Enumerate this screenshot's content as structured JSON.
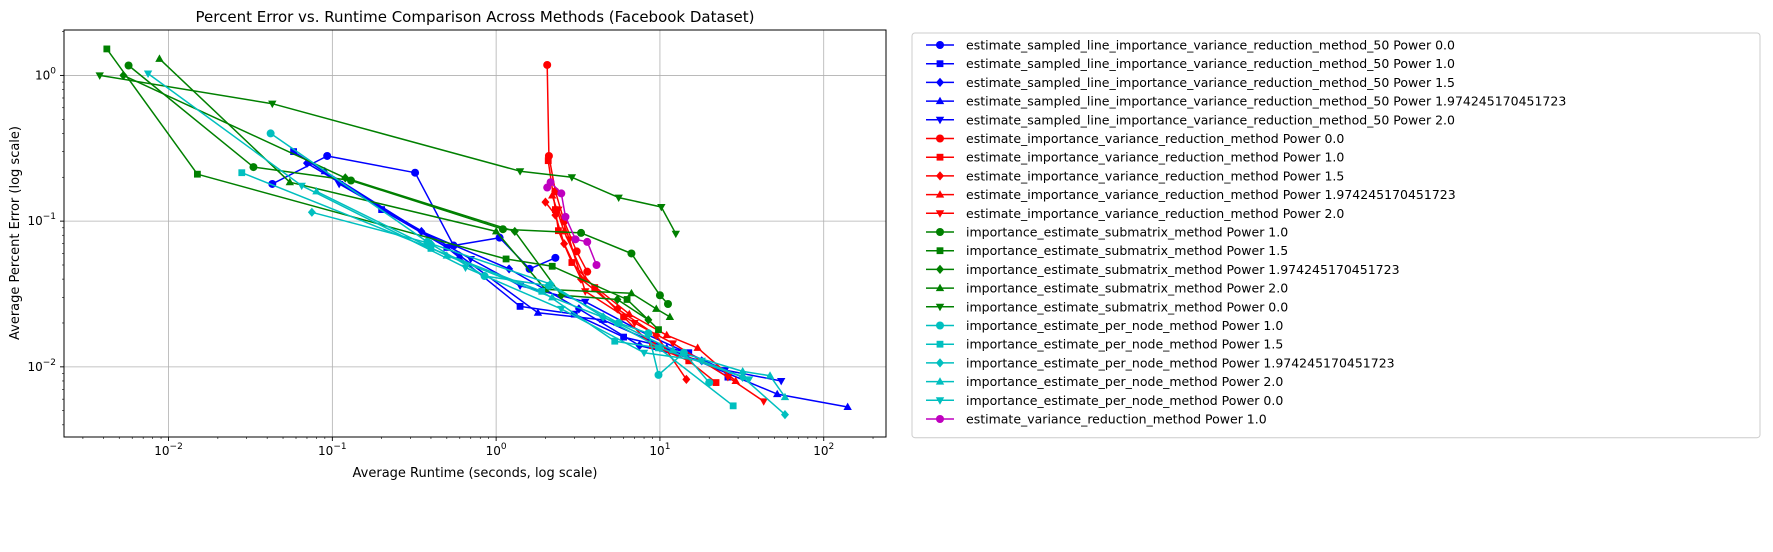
{
  "chart_data": {
    "type": "line",
    "title": "Percent Error vs. Runtime Comparison Across Methods (Facebook Dataset)",
    "xlabel": "Average Runtime (seconds, log scale)",
    "ylabel": "Average Percent Error (log scale)",
    "xscale": "log",
    "yscale": "log",
    "xlim": [
      0.0023,
      240
    ],
    "ylim": [
      0.0033,
      2.05
    ],
    "grid": true,
    "legend_position": "outside-right",
    "x_ticks": [
      {
        "value": 0.01,
        "base": "10",
        "exp": "−2"
      },
      {
        "value": 0.1,
        "base": "10",
        "exp": "−1"
      },
      {
        "value": 1,
        "base": "10",
        "exp": "0"
      },
      {
        "value": 10,
        "base": "10",
        "exp": "1"
      },
      {
        "value": 100,
        "base": "10",
        "exp": "2"
      }
    ],
    "y_ticks": [
      {
        "value": 0.01,
        "base": "10",
        "exp": "−2"
      },
      {
        "value": 0.1,
        "base": "10",
        "exp": "−1"
      },
      {
        "value": 1,
        "base": "10",
        "exp": "0"
      }
    ],
    "series": [
      {
        "name": "estimate_sampled_line_importance_variance_reduction_method_50 Power 0.0",
        "color": "#0000ff",
        "marker": "circle",
        "points": [
          [
            0.043,
            0.18
          ],
          [
            0.093,
            0.28
          ],
          [
            0.32,
            0.215
          ],
          [
            0.55,
            0.068
          ],
          [
            1.05,
            0.077
          ],
          [
            1.6,
            0.047
          ],
          [
            2.3,
            0.056
          ]
        ]
      },
      {
        "name": "estimate_sampled_line_importance_variance_reduction_method_50 Power 1.0",
        "color": "#0000ff",
        "marker": "square",
        "points": [
          [
            0.058,
            0.3
          ],
          [
            0.2,
            0.12
          ],
          [
            0.5,
            0.066
          ],
          [
            1.4,
            0.026
          ],
          [
            3.0,
            0.023
          ],
          [
            6.0,
            0.016
          ],
          [
            15,
            0.0125
          ],
          [
            26,
            0.0085
          ]
        ]
      },
      {
        "name": "estimate_sampled_line_importance_variance_reduction_method_50 Power 1.5",
        "color": "#0000ff",
        "marker": "diamond",
        "points": [
          [
            0.07,
            0.25
          ],
          [
            0.35,
            0.085
          ],
          [
            1.2,
            0.047
          ],
          [
            3.2,
            0.025
          ],
          [
            7.5,
            0.014
          ],
          [
            18,
            0.011
          ],
          [
            32,
            0.0085
          ]
        ]
      },
      {
        "name": "estimate_sampled_line_importance_variance_reduction_method_50 Power 1.974245170451723",
        "color": "#0000ff",
        "marker": "triangle-up",
        "points": [
          [
            0.09,
            0.22
          ],
          [
            0.6,
            0.058
          ],
          [
            1.8,
            0.0235
          ],
          [
            4.5,
            0.021
          ],
          [
            11,
            0.0135
          ],
          [
            52,
            0.0065
          ],
          [
            140,
            0.0053
          ]
        ]
      },
      {
        "name": "estimate_sampled_line_importance_variance_reduction_method_50 Power 2.0",
        "color": "#0000ff",
        "marker": "triangle-down",
        "points": [
          [
            0.11,
            0.18
          ],
          [
            0.7,
            0.055
          ],
          [
            1.4,
            0.036
          ],
          [
            3.5,
            0.028
          ],
          [
            8.5,
            0.0165
          ],
          [
            25,
            0.0095
          ],
          [
            55,
            0.008
          ]
        ]
      },
      {
        "name": "estimate_importance_variance_reduction_method Power 0.0",
        "color": "#ff0000",
        "marker": "circle",
        "points": [
          [
            2.05,
            1.18
          ],
          [
            2.1,
            0.28
          ],
          [
            2.3,
            0.16
          ],
          [
            2.6,
            0.1
          ],
          [
            3.1,
            0.062
          ],
          [
            3.6,
            0.045
          ]
        ]
      },
      {
        "name": "estimate_importance_variance_reduction_method Power 1.0",
        "color": "#ff0000",
        "marker": "square",
        "points": [
          [
            2.08,
            0.26
          ],
          [
            2.3,
            0.12
          ],
          [
            2.4,
            0.086
          ],
          [
            2.9,
            0.052
          ],
          [
            4.0,
            0.035
          ],
          [
            6.0,
            0.022
          ],
          [
            9.0,
            0.014
          ],
          [
            15,
            0.011
          ],
          [
            22,
            0.0078
          ]
        ]
      },
      {
        "name": "estimate_importance_variance_reduction_method Power 1.5",
        "color": "#ff0000",
        "marker": "diamond",
        "points": [
          [
            2.0,
            0.135
          ],
          [
            2.3,
            0.11
          ],
          [
            2.6,
            0.07
          ],
          [
            3.3,
            0.04
          ],
          [
            5.5,
            0.025
          ],
          [
            9.5,
            0.0165
          ],
          [
            14.5,
            0.0082
          ]
        ]
      },
      {
        "name": "estimate_importance_variance_reduction_method Power 1.974245170451723",
        "color": "#ff0000",
        "marker": "triangle-up",
        "points": [
          [
            2.2,
            0.15
          ],
          [
            2.6,
            0.085
          ],
          [
            3.5,
            0.04
          ],
          [
            6.5,
            0.023
          ],
          [
            11,
            0.0165
          ],
          [
            17,
            0.0135
          ],
          [
            29,
            0.008
          ]
        ]
      },
      {
        "name": "estimate_importance_variance_reduction_method Power 2.0",
        "color": "#ff0000",
        "marker": "triangle-down",
        "points": [
          [
            2.4,
            0.12
          ],
          [
            2.8,
            0.075
          ],
          [
            3.5,
            0.033
          ],
          [
            7,
            0.02
          ],
          [
            12,
            0.0145
          ],
          [
            26,
            0.0085
          ],
          [
            43,
            0.0058
          ]
        ]
      },
      {
        "name": "importance_estimate_submatrix_method Power 1.0",
        "color": "#008000",
        "marker": "circle",
        "points": [
          [
            0.0057,
            1.17
          ],
          [
            0.033,
            0.235
          ],
          [
            0.13,
            0.19
          ],
          [
            1.1,
            0.088
          ],
          [
            3.3,
            0.083
          ],
          [
            6.7,
            0.06
          ],
          [
            10,
            0.031
          ],
          [
            11.2,
            0.027
          ]
        ]
      },
      {
        "name": "importance_estimate_submatrix_method Power 1.5",
        "color": "#008000",
        "marker": "square",
        "points": [
          [
            0.0042,
            1.52
          ],
          [
            0.015,
            0.21
          ],
          [
            1.15,
            0.055
          ],
          [
            2.2,
            0.049
          ],
          [
            6.3,
            0.029
          ],
          [
            9.8,
            0.018
          ]
        ]
      },
      {
        "name": "importance_estimate_submatrix_method Power 1.974245170451723",
        "color": "#008000",
        "marker": "diamond",
        "points": [
          [
            0.0053,
            1.0
          ],
          [
            0.12,
            0.198
          ],
          [
            1.3,
            0.085
          ],
          [
            2.5,
            0.031
          ],
          [
            5.5,
            0.029
          ],
          [
            8.5,
            0.021
          ]
        ]
      },
      {
        "name": "importance_estimate_submatrix_method Power 2.0",
        "color": "#008000",
        "marker": "triangle-up",
        "points": [
          [
            0.0088,
            1.3
          ],
          [
            0.055,
            0.185
          ],
          [
            1.0,
            0.085
          ],
          [
            2.0,
            0.034
          ],
          [
            6.7,
            0.032
          ],
          [
            9.5,
            0.025
          ],
          [
            11.5,
            0.022
          ]
        ]
      },
      {
        "name": "importance_estimate_submatrix_method Power 0.0",
        "color": "#008000",
        "marker": "triangle-down",
        "points": [
          [
            0.0038,
            1.0
          ],
          [
            0.043,
            0.64
          ],
          [
            1.4,
            0.22
          ],
          [
            2.9,
            0.2
          ],
          [
            5.6,
            0.145
          ],
          [
            10.2,
            0.125
          ],
          [
            12.5,
            0.082
          ]
        ]
      },
      {
        "name": "importance_estimate_per_node_method Power 1.0",
        "color": "#00bfbf",
        "marker": "circle",
        "points": [
          [
            0.042,
            0.4
          ],
          [
            0.38,
            0.072
          ],
          [
            0.85,
            0.042
          ],
          [
            2.1,
            0.036
          ],
          [
            5.6,
            0.02
          ],
          [
            8.5,
            0.017
          ],
          [
            9.8,
            0.0088
          ],
          [
            14,
            0.0125
          ],
          [
            20,
            0.0078
          ]
        ]
      },
      {
        "name": "importance_estimate_per_node_method Power 1.5",
        "color": "#00bfbf",
        "marker": "square",
        "points": [
          [
            0.028,
            0.215
          ],
          [
            0.4,
            0.065
          ],
          [
            1.9,
            0.033
          ],
          [
            5.3,
            0.015
          ],
          [
            9.8,
            0.0135
          ],
          [
            28,
            0.0054
          ]
        ]
      },
      {
        "name": "importance_estimate_per_node_method Power 1.974245170451723",
        "color": "#00bfbf",
        "marker": "diamond",
        "points": [
          [
            0.075,
            0.115
          ],
          [
            0.4,
            0.07
          ],
          [
            2.15,
            0.037
          ],
          [
            4.5,
            0.022
          ],
          [
            10,
            0.0135
          ],
          [
            32,
            0.0085
          ],
          [
            58,
            0.0047
          ]
        ]
      },
      {
        "name": "importance_estimate_per_node_method Power 2.0",
        "color": "#00bfbf",
        "marker": "triangle-up",
        "points": [
          [
            0.08,
            0.16
          ],
          [
            0.5,
            0.058
          ],
          [
            2.2,
            0.03
          ],
          [
            5.5,
            0.02
          ],
          [
            12,
            0.013
          ],
          [
            32,
            0.0093
          ],
          [
            47,
            0.0087
          ],
          [
            58,
            0.0062
          ]
        ]
      },
      {
        "name": "importance_estimate_per_node_method Power 0.0",
        "color": "#00bfbf",
        "marker": "triangle-down",
        "points": [
          [
            0.0075,
            1.03
          ],
          [
            0.065,
            0.175
          ],
          [
            0.65,
            0.048
          ],
          [
            2.5,
            0.025
          ],
          [
            8,
            0.0125
          ],
          [
            18,
            0.011
          ],
          [
            35,
            0.0082
          ]
        ]
      },
      {
        "name": "estimate_variance_reduction_method Power 1.0",
        "color": "#bf00bf",
        "marker": "circle",
        "points": [
          [
            2.05,
            0.17
          ],
          [
            2.15,
            0.185
          ],
          [
            2.5,
            0.155
          ],
          [
            2.65,
            0.107
          ],
          [
            3.05,
            0.075
          ],
          [
            3.6,
            0.072
          ],
          [
            4.1,
            0.05
          ]
        ]
      }
    ]
  }
}
